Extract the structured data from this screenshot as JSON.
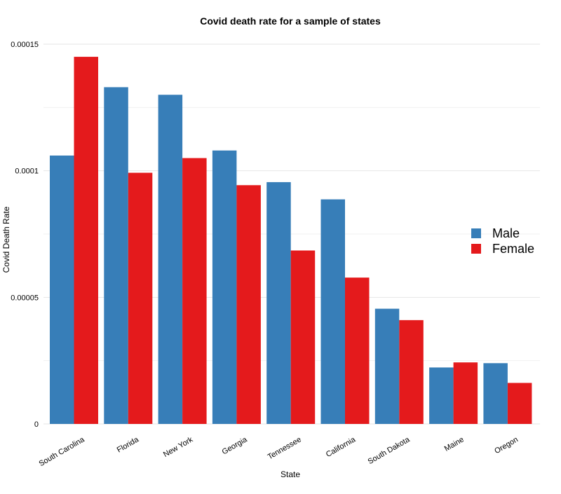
{
  "chart_data": {
    "type": "bar",
    "title": "Covid death rate for a sample of states",
    "xlabel": "State",
    "ylabel": "Covid Death Rate",
    "categories": [
      "South Carolina",
      "Florida",
      "New York",
      "Georgia",
      "Tennessee",
      "California",
      "South Dakota",
      "Maine",
      "Oregon"
    ],
    "series": [
      {
        "name": "Male",
        "color": "#377eb8",
        "values": [
          0.000106,
          0.000133,
          0.00013,
          0.000108,
          9.55e-05,
          8.87e-05,
          4.55e-05,
          2.23e-05,
          2.4e-05
        ]
      },
      {
        "name": "Female",
        "color": "#e41a1c",
        "values": [
          0.000145,
          9.92e-05,
          0.000105,
          9.43e-05,
          6.85e-05,
          5.78e-05,
          4.1e-05,
          2.43e-05,
          1.62e-05
        ]
      }
    ],
    "ylim": [
      0,
      0.00015
    ],
    "yticks": [
      0,
      5e-05,
      0.0001,
      0.00015
    ],
    "ytick_labels": [
      "0",
      "0.00005",
      "0.0001",
      "0.00015"
    ],
    "grid": true,
    "legend_position": "right"
  }
}
